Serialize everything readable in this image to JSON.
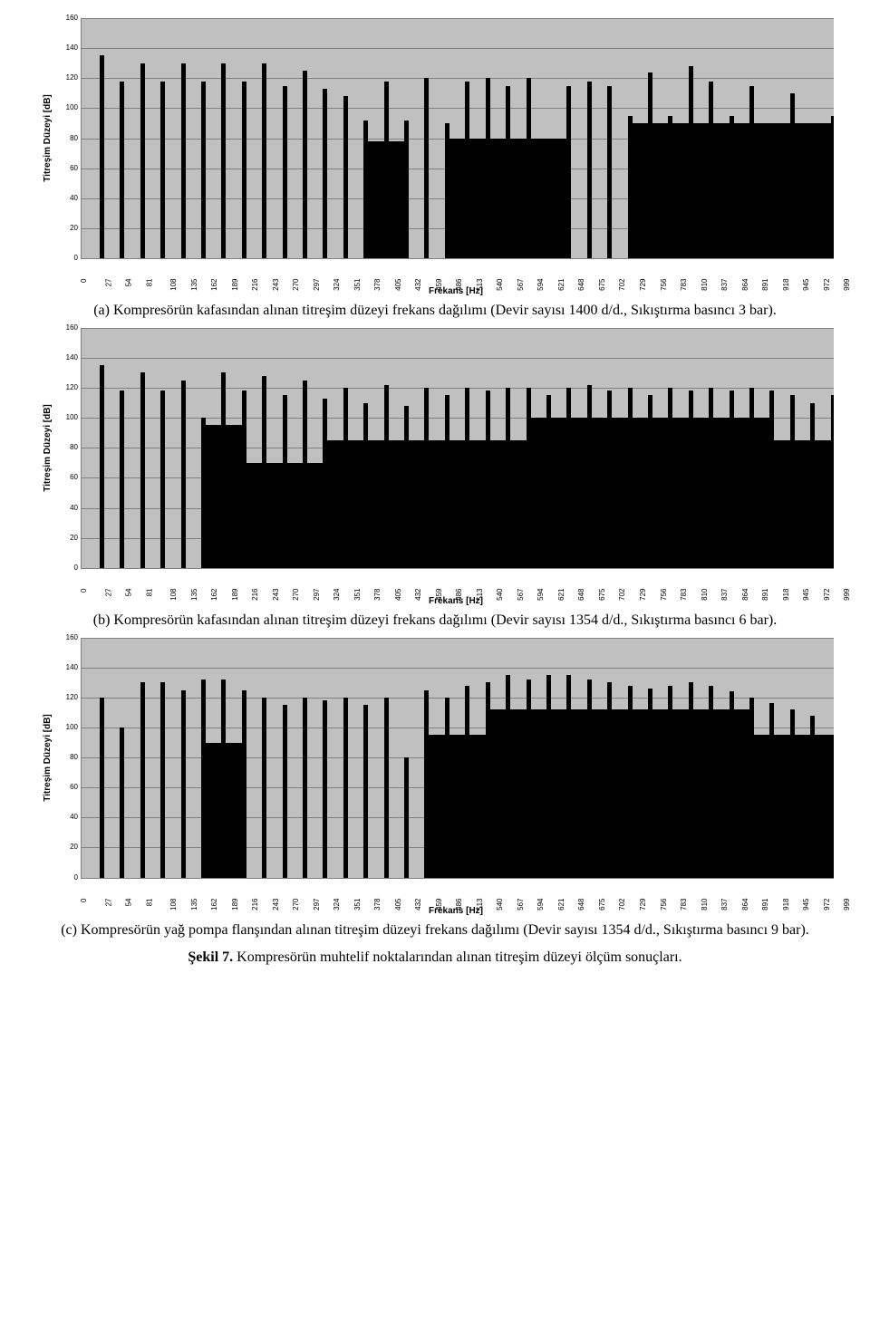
{
  "shared": {
    "xTicks": [
      0,
      27,
      54,
      81,
      108,
      135,
      162,
      189,
      216,
      243,
      270,
      297,
      324,
      351,
      378,
      405,
      432,
      459,
      486,
      513,
      540,
      567,
      594,
      621,
      648,
      675,
      702,
      729,
      756,
      783,
      810,
      837,
      864,
      891,
      918,
      945,
      972,
      999
    ],
    "yTicks": [
      160,
      140,
      120,
      100,
      80,
      60,
      40,
      20,
      0
    ],
    "yMax": 160,
    "xMax": 1000,
    "gridColor": "#808080",
    "bgColor": "#c0c0c0",
    "barColor": "#000000",
    "plotHeight": 265,
    "barWidth": 5,
    "yLabel": "Titreşim Düzeyi [dB]",
    "xLabel": "Frekans [Hz]",
    "tickFont": 8,
    "labelFont": 10
  },
  "captionA": "(a) Kompresörün kafasından alınan titreşim düzeyi frekans dağılımı (Devir sayısı 1400 d/d., Sıkıştırma basıncı 3 bar).",
  "captionB": "(b) Kompresörün kafasından alınan titreşim düzeyi frekans dağılımı (Devir sayısı 1354 d/d., Sıkıştırma basıncı 6 bar).",
  "captionC": "(c) Kompresörün yağ pompa flanşından alınan titreşim düzeyi frekans dağılımı (Devir sayısı 1354 d/d., Sıkıştırma basıncı 9 bar).",
  "finalBold": "Şekil 7.",
  "finalRest": " Kompresörün muhtelif noktalarından alınan titreşim düzeyi ölçüm sonuçları.",
  "chartA": {
    "peaks": [
      {
        "x": 27,
        "h": 135
      },
      {
        "x": 54,
        "h": 118
      },
      {
        "x": 81,
        "h": 130
      },
      {
        "x": 108,
        "h": 118
      },
      {
        "x": 135,
        "h": 130
      },
      {
        "x": 162,
        "h": 118
      },
      {
        "x": 189,
        "h": 130
      },
      {
        "x": 216,
        "h": 118
      },
      {
        "x": 243,
        "h": 130
      },
      {
        "x": 270,
        "h": 115
      },
      {
        "x": 297,
        "h": 125
      },
      {
        "x": 324,
        "h": 113
      },
      {
        "x": 351,
        "h": 108
      },
      {
        "x": 378,
        "h": 92
      },
      {
        "x": 405,
        "h": 118
      },
      {
        "x": 432,
        "h": 92
      },
      {
        "x": 459,
        "h": 120
      },
      {
        "x": 486,
        "h": 90
      },
      {
        "x": 513,
        "h": 118
      },
      {
        "x": 540,
        "h": 120
      },
      {
        "x": 567,
        "h": 115
      },
      {
        "x": 594,
        "h": 120
      },
      {
        "x": 621,
        "h": 80
      },
      {
        "x": 648,
        "h": 115
      },
      {
        "x": 675,
        "h": 118
      },
      {
        "x": 702,
        "h": 115
      },
      {
        "x": 729,
        "h": 95
      },
      {
        "x": 756,
        "h": 124
      },
      {
        "x": 783,
        "h": 95
      },
      {
        "x": 810,
        "h": 128
      },
      {
        "x": 837,
        "h": 118
      },
      {
        "x": 864,
        "h": 95
      },
      {
        "x": 891,
        "h": 115
      },
      {
        "x": 918,
        "h": 90
      },
      {
        "x": 945,
        "h": 110
      },
      {
        "x": 972,
        "h": 90
      },
      {
        "x": 999,
        "h": 95
      }
    ],
    "denseRanges": [
      {
        "from": 378,
        "to": 432,
        "base": 78
      },
      {
        "from": 486,
        "to": 648,
        "base": 80
      },
      {
        "from": 729,
        "to": 999,
        "base": 90
      }
    ]
  },
  "chartB": {
    "peaks": [
      {
        "x": 27,
        "h": 135
      },
      {
        "x": 54,
        "h": 118
      },
      {
        "x": 81,
        "h": 130
      },
      {
        "x": 108,
        "h": 118
      },
      {
        "x": 135,
        "h": 125
      },
      {
        "x": 162,
        "h": 100
      },
      {
        "x": 189,
        "h": 130
      },
      {
        "x": 216,
        "h": 118
      },
      {
        "x": 243,
        "h": 128
      },
      {
        "x": 270,
        "h": 115
      },
      {
        "x": 297,
        "h": 125
      },
      {
        "x": 324,
        "h": 113
      },
      {
        "x": 351,
        "h": 120
      },
      {
        "x": 378,
        "h": 110
      },
      {
        "x": 405,
        "h": 122
      },
      {
        "x": 432,
        "h": 108
      },
      {
        "x": 459,
        "h": 120
      },
      {
        "x": 486,
        "h": 115
      },
      {
        "x": 513,
        "h": 120
      },
      {
        "x": 540,
        "h": 118
      },
      {
        "x": 567,
        "h": 120
      },
      {
        "x": 594,
        "h": 120
      },
      {
        "x": 621,
        "h": 115
      },
      {
        "x": 648,
        "h": 120
      },
      {
        "x": 675,
        "h": 122
      },
      {
        "x": 702,
        "h": 118
      },
      {
        "x": 729,
        "h": 120
      },
      {
        "x": 756,
        "h": 115
      },
      {
        "x": 783,
        "h": 120
      },
      {
        "x": 810,
        "h": 118
      },
      {
        "x": 837,
        "h": 120
      },
      {
        "x": 864,
        "h": 118
      },
      {
        "x": 891,
        "h": 120
      },
      {
        "x": 918,
        "h": 118
      },
      {
        "x": 945,
        "h": 115
      },
      {
        "x": 972,
        "h": 110
      },
      {
        "x": 999,
        "h": 115
      }
    ],
    "denseRanges": [
      {
        "from": 162,
        "to": 216,
        "base": 95
      },
      {
        "from": 216,
        "to": 324,
        "base": 70
      },
      {
        "from": 324,
        "to": 1000,
        "base": 85
      }
    ],
    "envelopeExtras": [
      {
        "from": 594,
        "to": 918,
        "base": 100
      }
    ]
  },
  "chartC": {
    "peaks": [
      {
        "x": 27,
        "h": 120
      },
      {
        "x": 54,
        "h": 100
      },
      {
        "x": 81,
        "h": 130
      },
      {
        "x": 108,
        "h": 130
      },
      {
        "x": 135,
        "h": 125
      },
      {
        "x": 162,
        "h": 132
      },
      {
        "x": 189,
        "h": 132
      },
      {
        "x": 216,
        "h": 125
      },
      {
        "x": 243,
        "h": 120
      },
      {
        "x": 270,
        "h": 115
      },
      {
        "x": 297,
        "h": 120
      },
      {
        "x": 324,
        "h": 118
      },
      {
        "x": 351,
        "h": 120
      },
      {
        "x": 378,
        "h": 115
      },
      {
        "x": 405,
        "h": 120
      },
      {
        "x": 432,
        "h": 80
      },
      {
        "x": 459,
        "h": 125
      },
      {
        "x": 486,
        "h": 120
      },
      {
        "x": 513,
        "h": 128
      },
      {
        "x": 540,
        "h": 130
      },
      {
        "x": 567,
        "h": 135
      },
      {
        "x": 594,
        "h": 132
      },
      {
        "x": 621,
        "h": 135
      },
      {
        "x": 648,
        "h": 135
      },
      {
        "x": 675,
        "h": 132
      },
      {
        "x": 702,
        "h": 130
      },
      {
        "x": 729,
        "h": 128
      },
      {
        "x": 756,
        "h": 126
      },
      {
        "x": 783,
        "h": 128
      },
      {
        "x": 810,
        "h": 130
      },
      {
        "x": 837,
        "h": 128
      },
      {
        "x": 864,
        "h": 124
      },
      {
        "x": 891,
        "h": 120
      },
      {
        "x": 918,
        "h": 116
      },
      {
        "x": 945,
        "h": 112
      },
      {
        "x": 972,
        "h": 108
      },
      {
        "x": 999,
        "h": 85
      }
    ],
    "denseRanges": [
      {
        "from": 162,
        "to": 216,
        "base": 90
      },
      {
        "from": 459,
        "to": 1000,
        "base": 95
      }
    ],
    "envelopeExtras": [
      {
        "from": 540,
        "to": 891,
        "base": 112
      }
    ]
  }
}
